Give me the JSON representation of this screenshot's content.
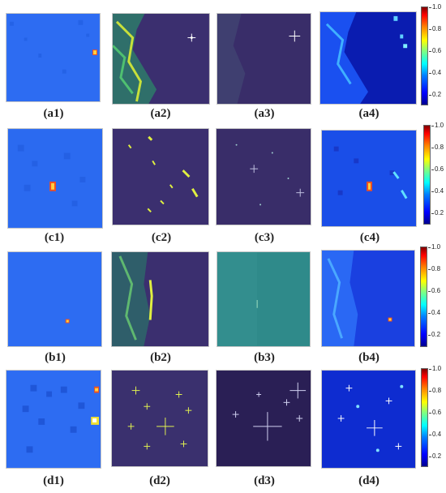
{
  "panels": [
    {
      "label": "(a1)"
    },
    {
      "label": "(a2)"
    },
    {
      "label": "(a3)"
    },
    {
      "label": "(a4)"
    },
    {
      "label": "(c1)"
    },
    {
      "label": "(c2)"
    },
    {
      "label": "(c3)"
    },
    {
      "label": "(c4)"
    },
    {
      "label": "(b1)"
    },
    {
      "label": "(b2)"
    },
    {
      "label": "(b3)"
    },
    {
      "label": "(b4)"
    },
    {
      "label": "(d1)"
    },
    {
      "label": "(d2)"
    },
    {
      "label": "(d3)"
    },
    {
      "label": "(d4)"
    }
  ],
  "colorbar": {
    "ticks": [
      "1.0",
      "0.8",
      "0.6",
      "0.4",
      "0.2"
    ]
  },
  "colors": {
    "heatmap_background": "#2a6cf0",
    "sar_background": "#3a2f6e",
    "sar_bright": "#d8f03a",
    "fused_background": "#1438d8"
  }
}
